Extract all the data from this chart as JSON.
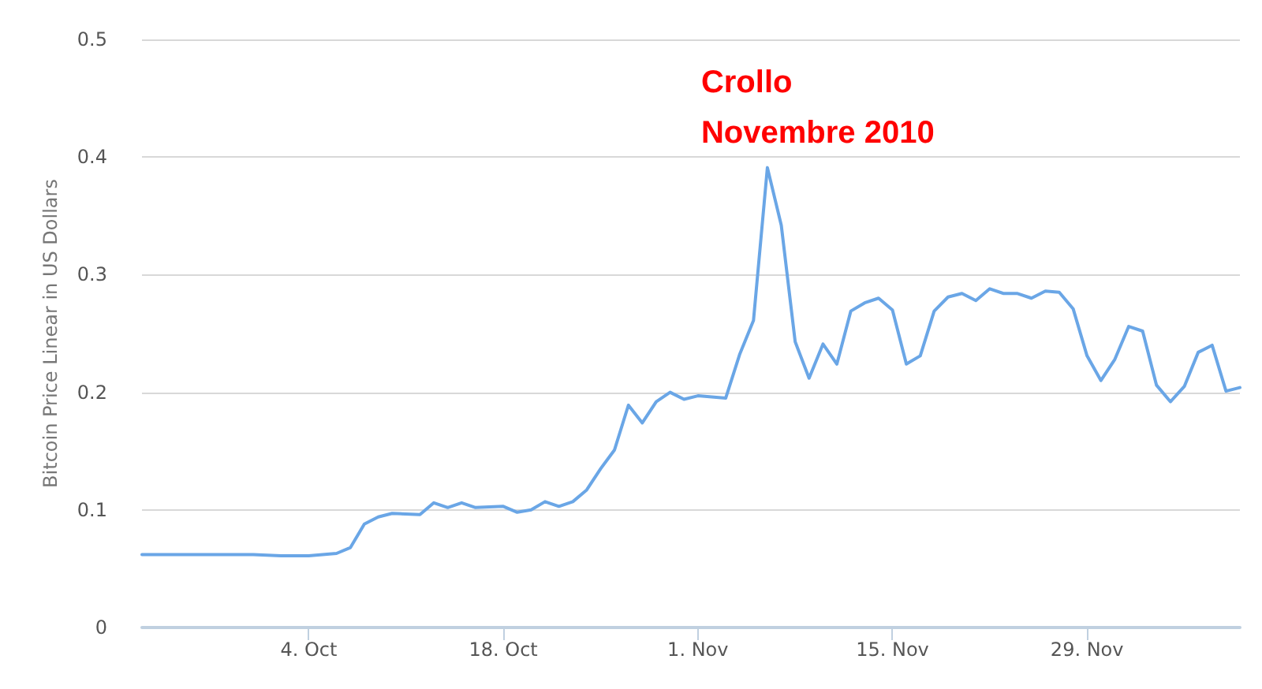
{
  "chart_data": {
    "type": "line",
    "ylabel": "Bitcoin Price Linear in US Dollars",
    "annotations": [
      {
        "text": "Crollo\nNovembre 2010",
        "x": "2010-11-06",
        "y": 0.391
      }
    ],
    "x": [
      "2010-09-22",
      "2010-09-24",
      "2010-09-26",
      "2010-09-28",
      "2010-09-30",
      "2010-10-02",
      "2010-10-04",
      "2010-10-06",
      "2010-10-07",
      "2010-10-08",
      "2010-10-09",
      "2010-10-10",
      "2010-10-12",
      "2010-10-13",
      "2010-10-14",
      "2010-10-15",
      "2010-10-16",
      "2010-10-18",
      "2010-10-19",
      "2010-10-20",
      "2010-10-21",
      "2010-10-22",
      "2010-10-23",
      "2010-10-24",
      "2010-10-25",
      "2010-10-26",
      "2010-10-27",
      "2010-10-28",
      "2010-10-29",
      "2010-10-30",
      "2010-10-31",
      "2010-11-01",
      "2010-11-02",
      "2010-11-03",
      "2010-11-04",
      "2010-11-05",
      "2010-11-06",
      "2010-11-07",
      "2010-11-08",
      "2010-11-09",
      "2010-11-10",
      "2010-11-11",
      "2010-11-12",
      "2010-11-13",
      "2010-11-14",
      "2010-11-15",
      "2010-11-16",
      "2010-11-17",
      "2010-11-18",
      "2010-11-19",
      "2010-11-20",
      "2010-11-21",
      "2010-11-22",
      "2010-11-23",
      "2010-11-24",
      "2010-11-25",
      "2010-11-26",
      "2010-11-27",
      "2010-11-28",
      "2010-11-29",
      "2010-11-30",
      "2010-12-01",
      "2010-12-02",
      "2010-12-03",
      "2010-12-04",
      "2010-12-05",
      "2010-12-06",
      "2010-12-07",
      "2010-12-08",
      "2010-12-09",
      "2010-12-10"
    ],
    "series": [
      {
        "color": "#6aa6e6",
        "values": [
          0.062,
          0.062,
          0.062,
          0.062,
          0.062,
          0.061,
          0.061,
          0.063,
          0.068,
          0.088,
          0.094,
          0.097,
          0.096,
          0.106,
          0.102,
          0.106,
          0.102,
          0.103,
          0.098,
          0.1,
          0.107,
          0.103,
          0.107,
          0.117,
          0.135,
          0.151,
          0.189,
          0.174,
          0.192,
          0.2,
          0.194,
          0.197,
          0.196,
          0.195,
          0.232,
          0.261,
          0.391,
          0.342,
          0.243,
          0.212,
          0.241,
          0.224,
          0.269,
          0.276,
          0.28,
          0.27,
          0.224,
          0.231,
          0.269,
          0.281,
          0.284,
          0.278,
          0.288,
          0.284,
          0.284,
          0.28,
          0.286,
          0.285,
          0.271,
          0.231,
          0.21,
          0.228,
          0.256,
          0.252,
          0.206,
          0.192,
          0.205,
          0.234,
          0.24,
          0.201,
          0.204
        ]
      }
    ],
    "xlim": [
      "2010-09-22",
      "2010-12-10"
    ],
    "xticks": [
      {
        "value": "2010-10-04",
        "label": "4. Oct"
      },
      {
        "value": "2010-10-18",
        "label": "18. Oct"
      },
      {
        "value": "2010-11-01",
        "label": "1. Nov"
      },
      {
        "value": "2010-11-15",
        "label": "15. Nov"
      },
      {
        "value": "2010-11-29",
        "label": "29. Nov"
      }
    ],
    "ylim": [
      0,
      0.5
    ],
    "yticks": [
      0,
      0.1,
      0.2,
      0.3,
      0.4,
      0.5
    ],
    "grid": "y",
    "marker": "none",
    "line_style": "solid"
  }
}
